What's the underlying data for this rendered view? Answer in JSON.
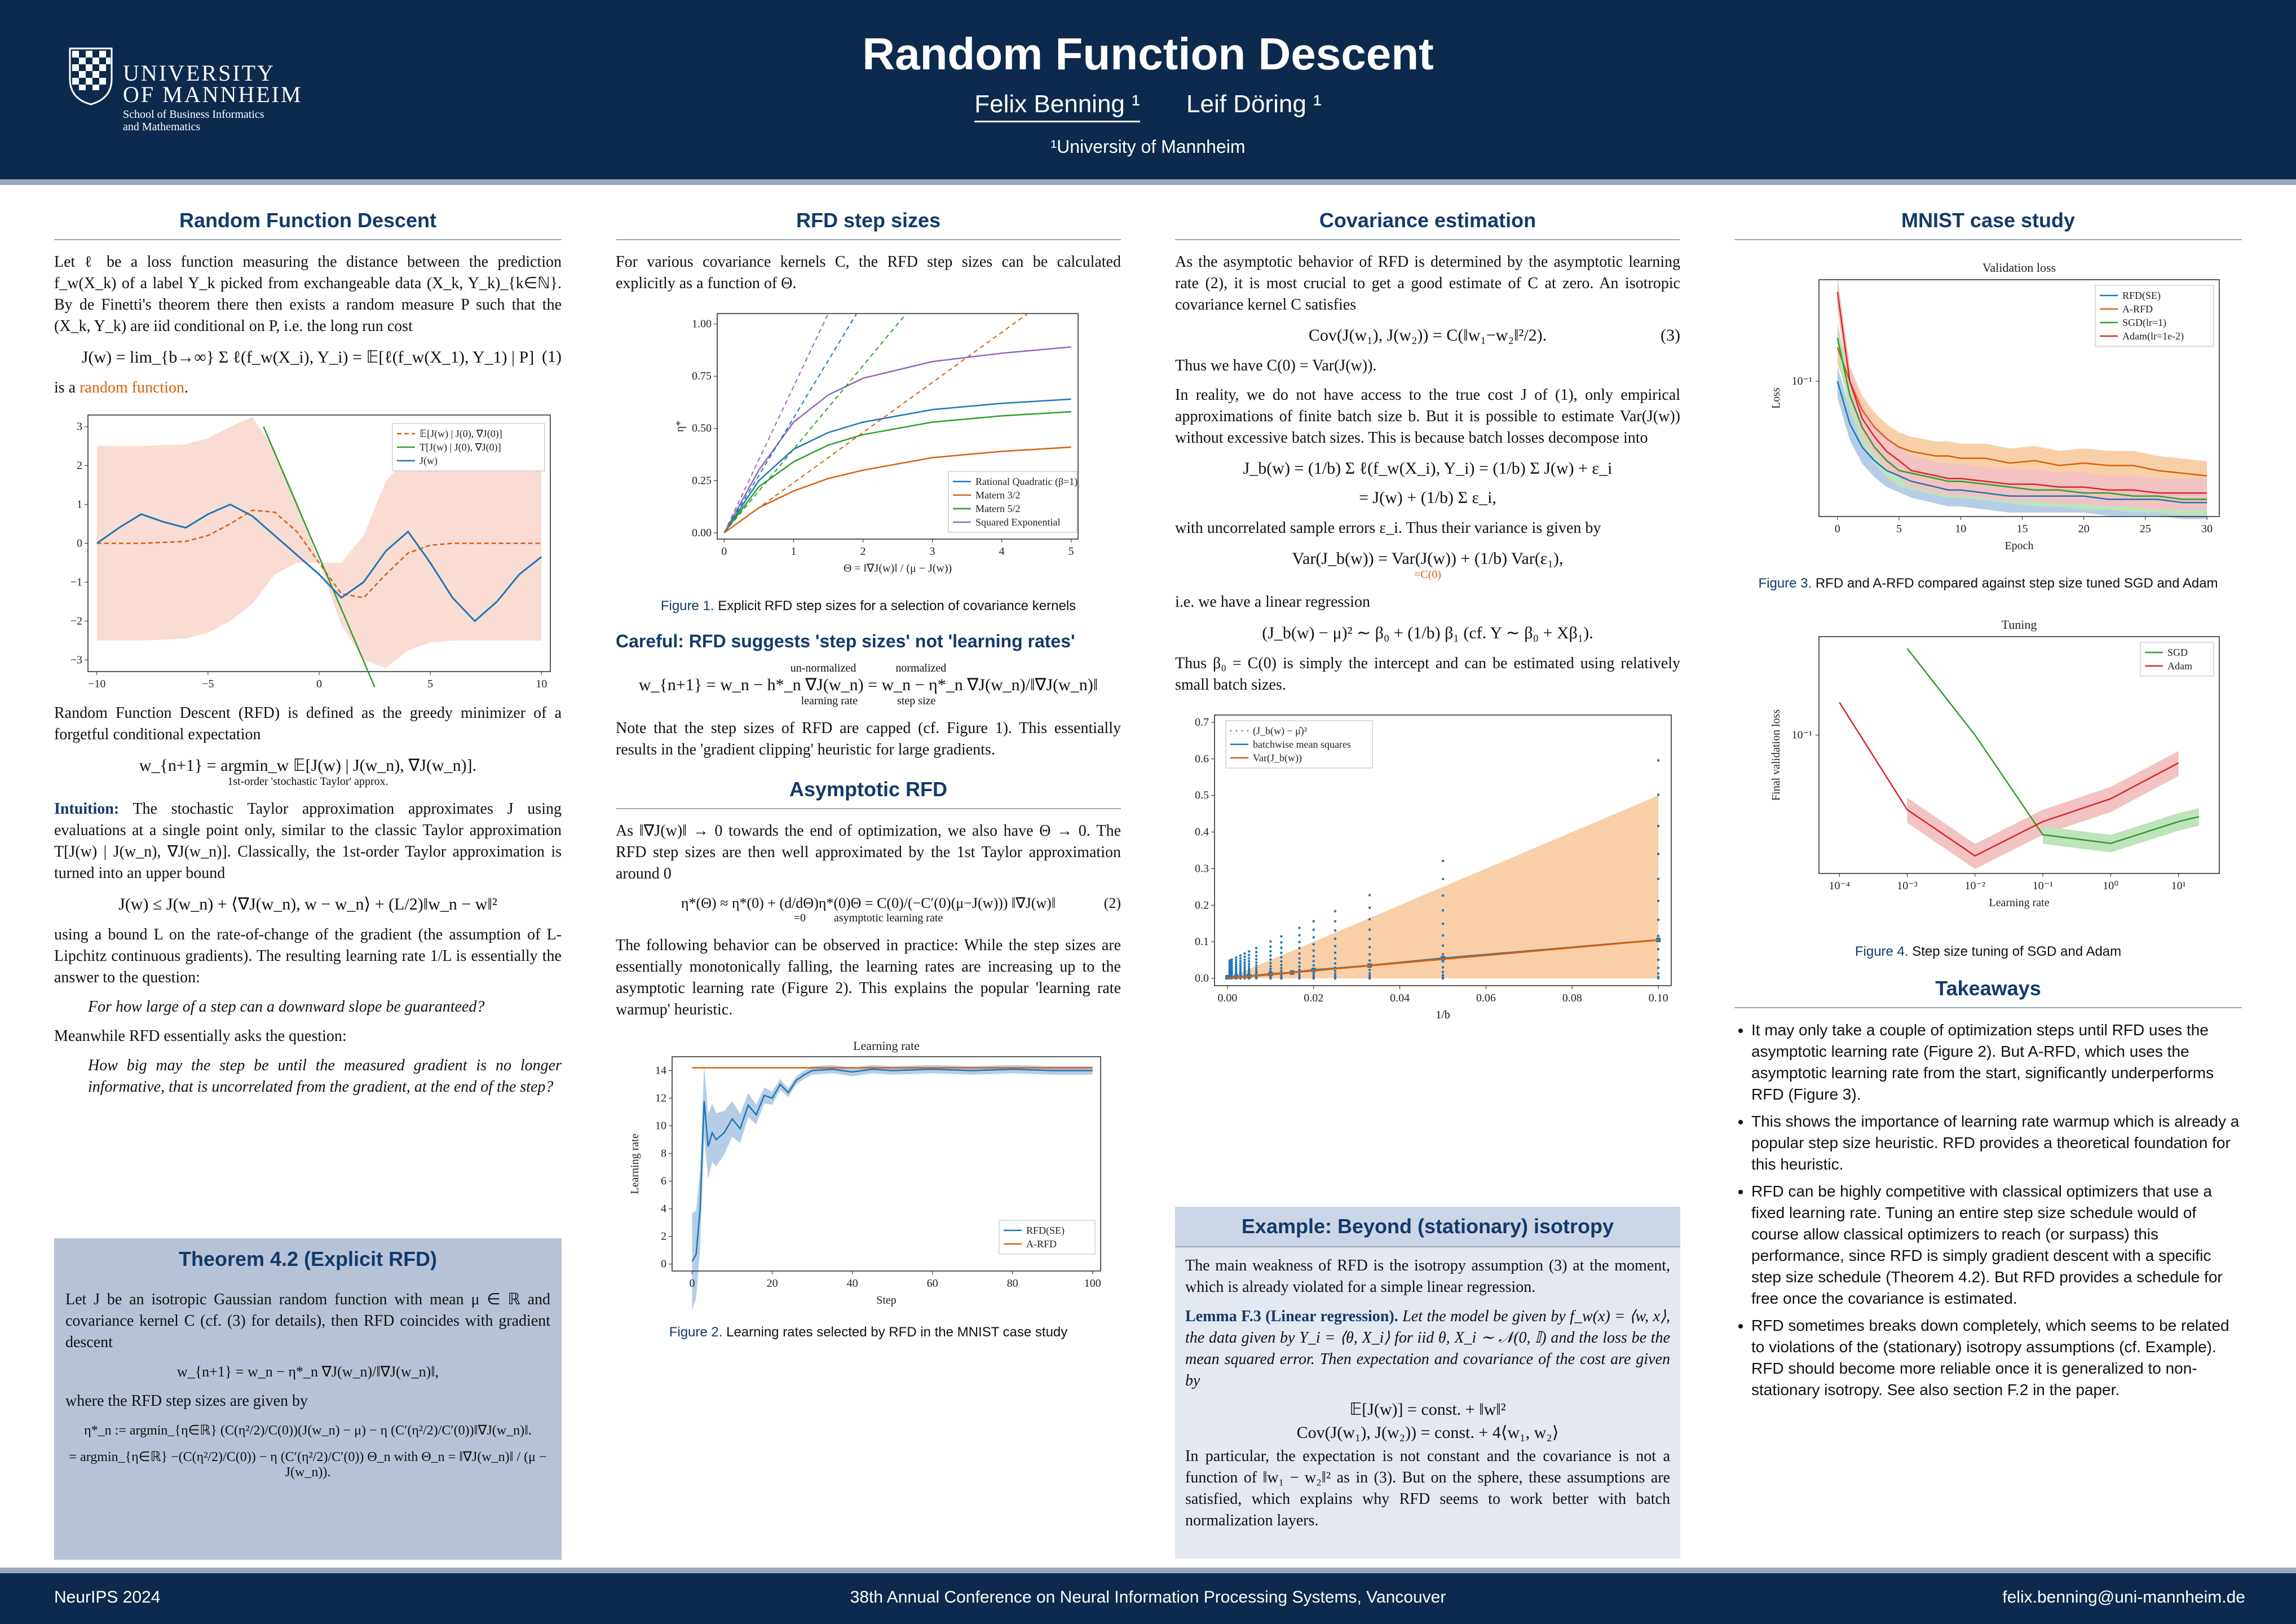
{
  "header": {
    "logo": {
      "line1": "UNIVERSITY",
      "line2": "OF MANNHEIM",
      "line3": "School of Business Informatics",
      "line4": "and Mathematics"
    },
    "title": "Random Function Descent",
    "author1": "Felix Benning ¹",
    "author2": "Leif Döring ¹",
    "affiliation": "¹University of Mannheim"
  },
  "footer": {
    "left": "NeurIPS 2024",
    "center": "38th Annual Conference on Neural Information Processing Systems, Vancouver",
    "right": "felix.benning@uni-mannheim.de"
  },
  "col1": {
    "title": "Random Function Descent",
    "p1": "Let ℓ be a loss function measuring the distance between the prediction f_w(X_k) of a label Y_k picked from exchangeable data (X_k, Y_k)_{k∈ℕ}. By de Finetti's theorem there then exists a random measure P such that the (X_k, Y_k) are iid conditional on P, i.e. the long run cost",
    "eq1": "J(w) = lim_{b→∞} Σ ℓ(f_w(X_i), Y_i) = 𝔼[ℓ(f_w(X_1), Y_1) | P]",
    "eq1_num": "(1)",
    "p2_prefix": "is a ",
    "p2_link": "random function",
    "p2_suffix": ".",
    "p3": "Random Function Descent (RFD) is defined as the greedy minimizer of a forgetful conditional expectation",
    "eq2": "w_{n+1} = argmin_w 𝔼[J(w) | J(w_n), ∇J(w_n)].",
    "eq2_note": "1st-order 'stochastic Taylor' approx.",
    "intuition_label": "Intuition:",
    "p4": "The stochastic Taylor approximation approximates J using evaluations at a single point only, similar to the classic Taylor approximation T[J(w) | J(w_n), ∇J(w_n)]. Classically, the 1st-order Taylor approximation is turned into an upper bound",
    "eq3": "J(w) ≤ J(w_n) + ⟨∇J(w_n), w − w_n⟩ + (L/2)‖w_n − w‖²",
    "p5": "using a bound L on the rate-of-change of the gradient (the assumption of L-Lipchitz continuous gradients). The resulting learning rate 1/L is essentially the answer to the question:",
    "q1": "For how large of a step can a downward slope be guaranteed?",
    "p6": "Meanwhile RFD essentially asks the question:",
    "q2": "How big may the step be until the measured gradient is no longer informative, that is uncorrelated from the gradient, at the end of the step?",
    "theorem_title": "Theorem 4.2 (Explicit RFD)",
    "t1": "Let J be an isotropic Gaussian random function with mean μ ∈ ℝ and covariance kernel C (cf. (3) for details), then RFD coincides with gradient descent",
    "t_eq1": "w_{n+1} = w_n − η*_n ∇J(w_n)/‖∇J(w_n)‖,",
    "t2": "where the RFD step sizes are given by",
    "t_eq2": "η*_n := argmin_{η∈ℝ} (C(η²/2)/C(0))(J(w_n) − μ) − η (C′(η²/2)/C′(0))‖∇J(w_n)‖.",
    "t_eq3": "= argmin_{η∈ℝ} −(C(η²/2)/C(0)) − η (C′(η²/2)/C′(0)) Θ_n   with   Θ_n = ‖∇J(w_n)‖ / (μ − J(w_n))."
  },
  "col2": {
    "title": "RFD step sizes",
    "p1": "For various covariance kernels C, the RFD step sizes can be calculated explicitly as a function of Θ.",
    "fig1_caption_label": "Figure 1.",
    "fig1_caption": "Explicit RFD step sizes for a selection of covariance kernels",
    "careful": "Careful: RFD suggests 'step sizes' not 'learning rates'",
    "eq_careful": "w_{n+1} = w_n − h*_n ∇J(w_n) = w_n − η*_n ∇J(w_n)/‖∇J(w_n)‖",
    "eq_careful_a": "un-normalized",
    "eq_careful_b": "learning rate",
    "eq_careful_c": "normalized",
    "eq_careful_d": "step size",
    "p2": "Note that the step sizes of RFD are capped (cf. Figure 1). This essentially results in the 'gradient clipping' heuristic for large gradients.",
    "asym_title": "Asymptotic RFD",
    "p3": "As ‖∇J(w)‖ → 0 towards the end of optimization, we also have Θ → 0. The RFD step sizes are then well approximated by the 1st Taylor approximation around 0",
    "eq_asym": "η*(Θ) ≈ η*(0) + (d/dΘ)η*(0)Θ = C(0)/(−C′(0)(μ−J(w))) ‖∇J(w)‖",
    "eq_asym_note1": "=0",
    "eq_asym_note2": "asymptotic learning rate",
    "eq_asym_num": "(2)",
    "p4": "The following behavior can be observed in practice: While the step sizes are essentially monotonically falling, the learning rates are increasing up to the asymptotic learning rate (Figure 2). This explains the popular 'learning rate warmup' heuristic.",
    "fig2_caption_label": "Figure 2.",
    "fig2_caption": "Learning rates selected by RFD in the MNIST case study"
  },
  "col3": {
    "title": "Covariance estimation",
    "p1": "As the asymptotic behavior of RFD is determined by the asymptotic learning rate (2), it is most crucial to get a good estimate of C at zero. An isotropic covariance kernel C satisfies",
    "eq1": "Cov(J(w₁), J(w₂)) = C(‖w₁−w₂‖²/2).",
    "eq1_num": "(3)",
    "p2": "Thus we have C(0) = Var(J(w)).",
    "p3": "In reality, we do not have access to the true cost J of (1), only empirical approximations of finite batch size b. But it is possible to estimate Var(J(w)) without excessive batch sizes. This is because batch losses decompose into",
    "eq2": "J_b(w) = (1/b) Σ ℓ(f_w(X_i), Y_i) = (1/b) Σ J(w) + ε_i",
    "eq3": "= J(w) + (1/b) Σ ε_i,",
    "p4": "with uncorrelated sample errors ε_i. Thus their variance is given by",
    "eq4": "Var(J_b(w)) = Var(J(w)) + (1/b) Var(ε₁),",
    "eq4_note": "=C(0)",
    "p5": "i.e. we have a linear regression",
    "eq5": "(J_b(w) − μ)² ∼ β₀ + (1/b) β₁       (cf. Y ∼ β₀ + Xβ₁).",
    "p6": "Thus β₀ = C(0) is simply the intercept and can be estimated using relatively small batch sizes.",
    "example_title": "Example: Beyond (stationary) isotropy",
    "e1": "The main weakness of RFD is the isotropy assumption (3) at the moment, which is already violated for a simple linear regression.",
    "lemma_label": "Lemma F.3 (Linear regression).",
    "lemma": "Let the model be given by f_w(x) = ⟨w, x⟩, the data given by Y_i = ⟨θ, X_i⟩ for iid θ, X_i ∼ 𝒩(0, 𝕀) and the loss be the mean squared error. Then expectation and covariance of the cost are given by",
    "lemma_eq1": "𝔼[J(w)] = const. + ‖w‖²",
    "lemma_eq2": "Cov(J(w₁), J(w₂)) = const. + 4⟨w₁, w₂⟩",
    "e2": "In particular, the expectation is not constant and the covariance is not a function of ‖w₁ − w₂‖² as in (3). But on the sphere, these assumptions are satisfied, which explains why RFD seems to work better with batch normalization layers."
  },
  "col4": {
    "title": "MNIST case study",
    "fig3_caption_label": "Figure 3.",
    "fig3_caption": "RFD and A-RFD compared against step size tuned SGD and Adam",
    "fig4_caption_label": "Figure 4.",
    "fig4_caption": "Step size tuning of SGD and Adam",
    "takeaways_title": "Takeaways",
    "takeaways": [
      "It may only take a couple of optimization steps until RFD uses the asymptotic learning rate (Figure 2). But A-RFD, which uses the asymptotic learning rate from the start, significantly underperforms RFD (Figure 3).",
      "This shows the importance of learning rate warmup which is already a popular step size heuristic. RFD provides a theoretical foundation for this heuristic.",
      "RFD can be highly competitive with classical optimizers that use a fixed learning rate. Tuning an entire step size schedule would of course allow classical optimizers to reach (or surpass) this performance, since RFD is simply gradient descent with a specific step size schedule (Theorem 4.2). But RFD provides a schedule for free once the covariance is estimated.",
      "RFD sometimes breaks down completely, which seems to be related to violations of the (stationary) isotropy assumptions (cf. Example). RFD should become more reliable once it is generalized to non-stationary isotropy. See also section F.2 in the paper."
    ]
  },
  "colors": {
    "navy": "#0d2a4e",
    "accent": "#123a6b",
    "orange": "#d95f0e",
    "blue": "#1f77b4",
    "green": "#2ca02c",
    "red": "#d62728",
    "purple": "#9467bd",
    "boxed": "#b8c2d6"
  },
  "chart_data": [
    {
      "id": "rf-plot",
      "type": "line",
      "xlim": [
        -10,
        10
      ],
      "ylim": [
        -3,
        3
      ],
      "xticks": [
        "−10",
        "−5",
        "0",
        "5",
        "10"
      ],
      "yticks": [
        "3",
        "2",
        "1",
        "0",
        "−1",
        "−2",
        "−3"
      ],
      "legend": [
        "𝔼[J(w) | J(0), ∇J(0)]",
        "T[J(w) | J(0), ∇J(0)]",
        "J(w)"
      ],
      "legend_loc": "top-right",
      "series": [
        {
          "name": "J(w)",
          "x": [
            -10,
            -9,
            -8,
            -7,
            -6,
            -5,
            -4,
            -3,
            -2,
            -1,
            0,
            1,
            2,
            3,
            4,
            5,
            6,
            7,
            8,
            9,
            10
          ],
          "y": [
            0,
            0.4,
            0.75,
            0.55,
            0.4,
            0.75,
            1.0,
            0.7,
            0.2,
            -0.3,
            -0.8,
            -1.4,
            -1.0,
            -0.2,
            0.3,
            -0.5,
            -1.4,
            -2.0,
            -1.5,
            -0.8,
            -0.35
          ]
        },
        {
          "name": "𝔼[J(w) | J(0), ∇J(0)]",
          "x": [
            -10,
            -8,
            -6,
            -5,
            -4,
            -3,
            -2,
            -1,
            0,
            1,
            2,
            3,
            4,
            5,
            6,
            8,
            10
          ],
          "y": [
            0,
            0,
            0.05,
            0.2,
            0.5,
            0.85,
            0.8,
            0.3,
            -0.5,
            -1.3,
            -1.4,
            -0.8,
            -0.25,
            -0.05,
            0,
            0,
            0
          ]
        },
        {
          "name": "T[J(w) | J(0), ∇J(0)]",
          "x": [
            -2.5,
            2.5
          ],
          "y": [
            3,
            -3.7
          ]
        }
      ]
    },
    {
      "id": "step-size-plot",
      "type": "line",
      "xlabel": "Θ = ‖∇J(w)‖ / (μ − J(w))",
      "ylabel": "η*",
      "xlim": [
        0,
        5
      ],
      "ylim": [
        0,
        1.05
      ],
      "xticks": [
        "0",
        "1",
        "2",
        "3",
        "4",
        "5"
      ],
      "yticks": [
        "1.00",
        "0.75",
        "0.50",
        "0.25",
        "0.00"
      ],
      "legend": [
        "Rational Quadratic (β=1)",
        "Matern 3/2",
        "Matern 5/2",
        "Squared Exponential"
      ],
      "legend_loc": "bottom-right",
      "series": [
        {
          "name": "Rational Quadratic (β=1)",
          "x": [
            0,
            0.5,
            1,
            1.5,
            2,
            3,
            4,
            5
          ],
          "y": [
            0,
            0.25,
            0.4,
            0.48,
            0.53,
            0.59,
            0.62,
            0.64
          ]
        },
        {
          "name": "Matern 3/2",
          "x": [
            0,
            0.5,
            1,
            1.5,
            2,
            3,
            4,
            5
          ],
          "y": [
            0,
            0.12,
            0.2,
            0.26,
            0.3,
            0.36,
            0.39,
            0.41
          ]
        },
        {
          "name": "Matern 5/2",
          "x": [
            0,
            0.5,
            1,
            1.5,
            2,
            3,
            4,
            5
          ],
          "y": [
            0,
            0.22,
            0.34,
            0.42,
            0.47,
            0.53,
            0.56,
            0.58
          ]
        },
        {
          "name": "Squared Exponential",
          "x": [
            0,
            0.5,
            1,
            1.5,
            2,
            3,
            4,
            5
          ],
          "y": [
            0,
            0.3,
            0.53,
            0.66,
            0.74,
            0.82,
            0.86,
            0.89
          ]
        }
      ]
    },
    {
      "id": "lr-plot",
      "type": "line",
      "title": "Learning rate",
      "xlabel": "Step",
      "ylabel": "Learning rate",
      "xlim": [
        -5,
        102
      ],
      "ylim": [
        0,
        15
      ],
      "xticks": [
        "0",
        "20",
        "40",
        "60",
        "80",
        "100"
      ],
      "yticks": [
        "14",
        "12",
        "10",
        "8",
        "6",
        "4",
        "2",
        "0"
      ],
      "legend": [
        "RFD(SE)",
        "A-RFD"
      ],
      "legend_loc": "bottom-right",
      "series": [
        {
          "name": "RFD(SE)",
          "x": [
            0,
            1,
            2,
            3,
            4,
            5,
            6,
            8,
            10,
            12,
            14,
            16,
            18,
            20,
            22,
            24,
            26,
            28,
            30,
            35,
            40,
            45,
            50,
            60,
            70,
            80,
            90,
            100
          ],
          "y": [
            0.2,
            0.7,
            4,
            11.8,
            8.5,
            9.5,
            9,
            9.5,
            10.5,
            9.8,
            11.5,
            10.8,
            12.2,
            12,
            13,
            12.4,
            13.3,
            13.7,
            14,
            14.1,
            13.9,
            14.1,
            14,
            14.1,
            14,
            14.1,
            14,
            14
          ]
        },
        {
          "name": "A-RFD",
          "x": [
            0,
            100
          ],
          "y": [
            14.2,
            14.2
          ]
        }
      ]
    },
    {
      "id": "cov-plot",
      "type": "scatter",
      "xlabel": "1/b",
      "xlim": [
        -0.003,
        0.103
      ],
      "ylim": [
        -0.02,
        0.72
      ],
      "xticks": [
        "0.00",
        "0.02",
        "0.04",
        "0.06",
        "0.08",
        "0.10"
      ],
      "yticks": [
        "0.7",
        "0.6",
        "0.5",
        "0.4",
        "0.3",
        "0.2",
        "0.1",
        "0.0"
      ],
      "legend": [
        "(J_b(w) − μ̂)²",
        "batchwise mean squares",
        "Var(J_b(w))"
      ],
      "legend_loc": "top-left",
      "series": [
        {
          "name": "batchwise mean squares",
          "x": [
            0,
            0.002,
            0.005,
            0.01,
            0.015,
            0.02,
            0.033,
            0.05,
            0.1
          ],
          "y": [
            0.003,
            0.004,
            0.006,
            0.012,
            0.016,
            0.023,
            0.035,
            0.055,
            0.105
          ]
        },
        {
          "name": "Var(J_b(w))",
          "x": [
            0,
            0.1
          ],
          "y": [
            0,
            0.105
          ]
        }
      ]
    },
    {
      "id": "val-plot",
      "type": "line",
      "title": "Validation loss",
      "xlabel": "Epoch",
      "ylabel": "Loss",
      "xticks": [
        "0",
        "5",
        "10",
        "15",
        "20",
        "25",
        "30"
      ],
      "legend": [
        "RFD(SE)",
        "A-RFD",
        "SGD(lr=1)",
        "Adam(lr=1e-2)"
      ],
      "legend_loc": "top-right",
      "series": [
        {
          "name": "RFD(SE)",
          "x": [
            0,
            1,
            2,
            3,
            4,
            5,
            6,
            7,
            8,
            9,
            10,
            12,
            14,
            16,
            18,
            20,
            22,
            24,
            26,
            28,
            30
          ],
          "y": [
            0.1,
            0.072,
            0.06,
            0.054,
            0.05,
            0.048,
            0.046,
            0.045,
            0.044,
            0.043,
            0.043,
            0.042,
            0.041,
            0.041,
            0.041,
            0.041,
            0.04,
            0.04,
            0.04,
            0.039,
            0.039
          ]
        },
        {
          "name": "A-RFD",
          "x": [
            0,
            1,
            2,
            3,
            4,
            5,
            6,
            7,
            8,
            9,
            10,
            12,
            14,
            16,
            18,
            20,
            22,
            24,
            26,
            28,
            30
          ],
          "y": [
            0.13,
            0.1,
            0.08,
            0.07,
            0.064,
            0.06,
            0.058,
            0.057,
            0.056,
            0.056,
            0.055,
            0.055,
            0.053,
            0.054,
            0.052,
            0.053,
            0.052,
            0.052,
            0.05,
            0.049,
            0.048
          ]
        },
        {
          "name": "SGD(lr=1)",
          "x": [
            0,
            1,
            2,
            3,
            4,
            5,
            6,
            7,
            8,
            9,
            10,
            12,
            14,
            16,
            18,
            20,
            22,
            24,
            26,
            28,
            30
          ],
          "y": [
            0.14,
            0.09,
            0.07,
            0.06,
            0.054,
            0.05,
            0.049,
            0.048,
            0.047,
            0.046,
            0.046,
            0.045,
            0.044,
            0.043,
            0.043,
            0.042,
            0.042,
            0.041,
            0.041,
            0.04,
            0.04
          ]
        },
        {
          "name": "Adam(lr=1e-2)",
          "x": [
            0,
            1,
            2,
            3,
            4,
            5,
            6,
            7,
            8,
            9,
            10,
            12,
            14,
            16,
            18,
            20,
            22,
            24,
            26,
            28,
            30
          ],
          "y": [
            0.2,
            0.1,
            0.075,
            0.065,
            0.058,
            0.054,
            0.05,
            0.049,
            0.048,
            0.047,
            0.047,
            0.046,
            0.045,
            0.045,
            0.044,
            0.044,
            0.043,
            0.043,
            0.042,
            0.042,
            0.042
          ]
        }
      ]
    },
    {
      "id": "tuning-plot",
      "type": "line",
      "title": "Tuning",
      "xlabel": "Learning rate",
      "ylabel": "Final validation loss",
      "xticks": [
        "10⁻⁴",
        "10⁻³",
        "10⁻²",
        "10⁻¹",
        "10⁰",
        "10¹"
      ],
      "legend": [
        "SGD",
        "Adam"
      ],
      "legend_loc": "top-right",
      "series": [
        {
          "name": "SGD",
          "x": [
            0.001,
            0.01,
            0.1,
            1,
            10,
            20
          ],
          "y": [
            0.2,
            0.1,
            0.045,
            0.042,
            0.05,
            0.052
          ]
        },
        {
          "name": "Adam",
          "x": [
            0.0001,
            0.001,
            0.01,
            0.1,
            1,
            10
          ],
          "y": [
            0.13,
            0.055,
            0.038,
            0.05,
            0.06,
            0.08
          ]
        }
      ]
    }
  ]
}
